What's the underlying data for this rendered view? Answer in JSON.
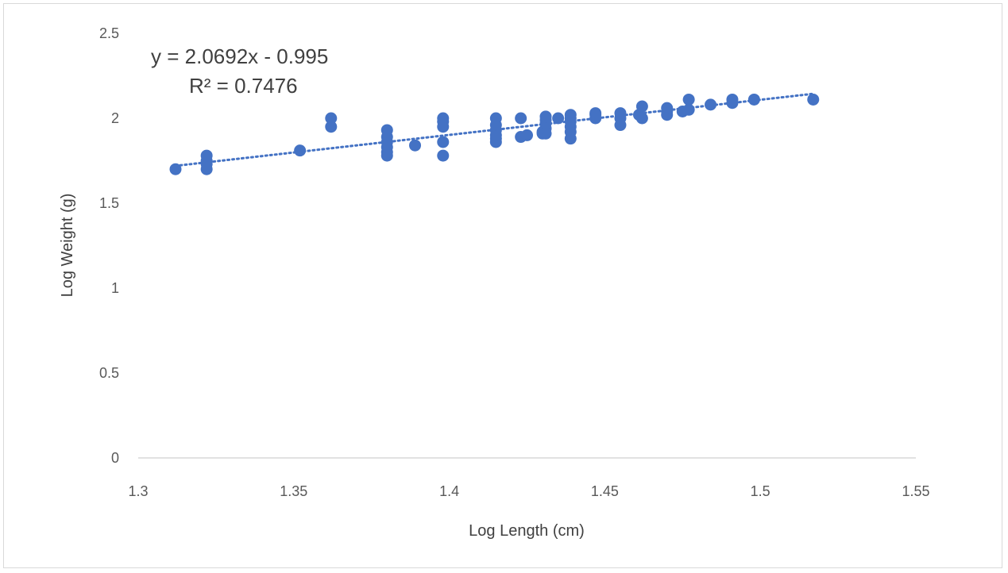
{
  "chart_data": {
    "type": "scatter",
    "title": "",
    "xlabel": "Log Length (cm)",
    "ylabel": "Log Weight (g)",
    "xlim": [
      1.3,
      1.55
    ],
    "ylim": [
      0,
      2.5
    ],
    "x_ticks": [
      "1.3",
      "1.35",
      "1.4",
      "1.45",
      "1.5",
      "1.55"
    ],
    "y_ticks": [
      "0",
      "0.5",
      "1",
      "1.5",
      "2",
      "2.5"
    ],
    "grid": false,
    "legend": "none",
    "marker_color": "#4472c4",
    "trendline": {
      "type": "linear",
      "style": "dotted",
      "slope": 2.0692,
      "intercept": -0.995,
      "x_range": [
        1.312,
        1.517
      ],
      "equation_label": "y = 2.0692x - 0.995",
      "r2_label": "R² = 0.7476"
    },
    "points": [
      [
        1.312,
        1.7
      ],
      [
        1.322,
        1.7
      ],
      [
        1.322,
        1.73
      ],
      [
        1.322,
        1.75
      ],
      [
        1.322,
        1.78
      ],
      [
        1.352,
        1.81
      ],
      [
        1.362,
        1.95
      ],
      [
        1.362,
        2.0
      ],
      [
        1.38,
        1.78
      ],
      [
        1.38,
        1.8
      ],
      [
        1.38,
        1.83
      ],
      [
        1.38,
        1.86
      ],
      [
        1.38,
        1.89
      ],
      [
        1.38,
        1.93
      ],
      [
        1.389,
        1.84
      ],
      [
        1.398,
        1.78
      ],
      [
        1.398,
        1.86
      ],
      [
        1.398,
        1.95
      ],
      [
        1.398,
        1.98
      ],
      [
        1.398,
        2.0
      ],
      [
        1.415,
        1.86
      ],
      [
        1.415,
        1.88
      ],
      [
        1.415,
        1.9
      ],
      [
        1.415,
        1.93
      ],
      [
        1.415,
        1.96
      ],
      [
        1.415,
        2.0
      ],
      [
        1.423,
        1.89
      ],
      [
        1.423,
        2.0
      ],
      [
        1.425,
        1.9
      ],
      [
        1.43,
        1.91
      ],
      [
        1.43,
        1.92
      ],
      [
        1.431,
        1.91
      ],
      [
        1.431,
        1.94
      ],
      [
        1.431,
        1.97
      ],
      [
        1.431,
        1.99
      ],
      [
        1.431,
        2.01
      ],
      [
        1.435,
        2.0
      ],
      [
        1.439,
        1.88
      ],
      [
        1.439,
        1.92
      ],
      [
        1.439,
        1.95
      ],
      [
        1.439,
        1.98
      ],
      [
        1.439,
        2.0
      ],
      [
        1.439,
        2.02
      ],
      [
        1.447,
        2.0
      ],
      [
        1.447,
        2.02
      ],
      [
        1.447,
        2.03
      ],
      [
        1.455,
        1.96
      ],
      [
        1.455,
        2.0
      ],
      [
        1.455,
        2.03
      ],
      [
        1.461,
        2.02
      ],
      [
        1.462,
        2.0
      ],
      [
        1.462,
        2.07
      ],
      [
        1.47,
        2.02
      ],
      [
        1.47,
        2.04
      ],
      [
        1.47,
        2.06
      ],
      [
        1.475,
        2.04
      ],
      [
        1.477,
        2.05
      ],
      [
        1.477,
        2.11
      ],
      [
        1.484,
        2.08
      ],
      [
        1.491,
        2.09
      ],
      [
        1.491,
        2.11
      ],
      [
        1.498,
        2.11
      ],
      [
        1.517,
        2.11
      ]
    ]
  }
}
